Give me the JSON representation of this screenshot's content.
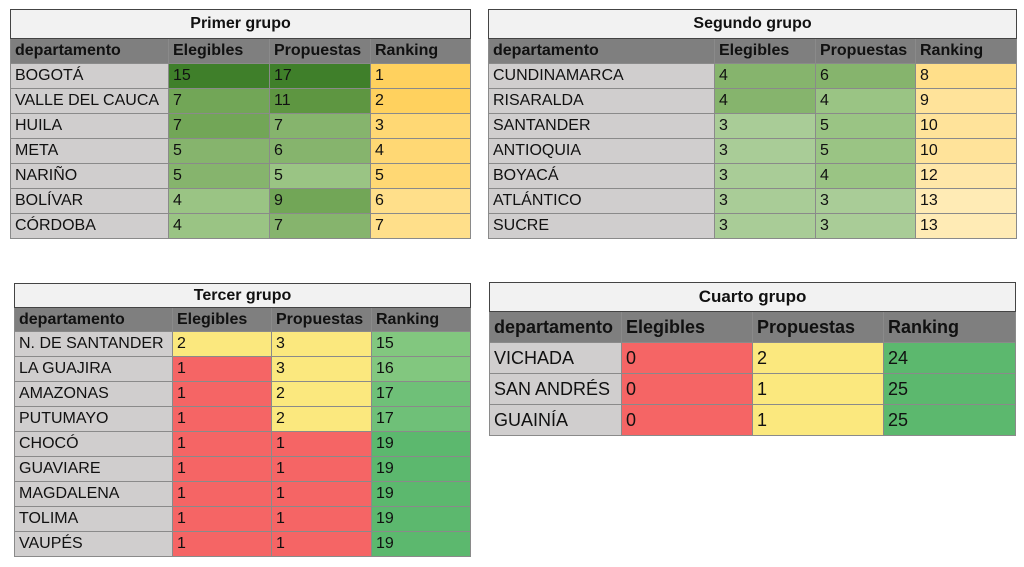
{
  "headers": {
    "dept": "departamento",
    "elegibles": "Elegibles",
    "propuestas": "Propuestas",
    "ranking": "Ranking"
  },
  "groups": [
    {
      "title": "Primer grupo",
      "rows": [
        {
          "dept": "BOGOTÁ",
          "elegibles": "15",
          "propuestas": "17",
          "ranking": "1"
        },
        {
          "dept": "VALLE DEL CAUCA",
          "elegibles": "7",
          "propuestas": "11",
          "ranking": "2"
        },
        {
          "dept": "HUILA",
          "elegibles": "7",
          "propuestas": "7",
          "ranking": "3"
        },
        {
          "dept": "META",
          "elegibles": "5",
          "propuestas": "6",
          "ranking": "4"
        },
        {
          "dept": "NARIÑO",
          "elegibles": "5",
          "propuestas": "5",
          "ranking": "5"
        },
        {
          "dept": "BOLÍVAR",
          "elegibles": "4",
          "propuestas": "9",
          "ranking": "6"
        },
        {
          "dept": "CÓRDOBA",
          "elegibles": "4",
          "propuestas": "7",
          "ranking": "7"
        }
      ]
    },
    {
      "title": "Segundo grupo",
      "rows": [
        {
          "dept": "CUNDINAMARCA",
          "elegibles": "4",
          "propuestas": "6",
          "ranking": "8"
        },
        {
          "dept": "RISARALDA",
          "elegibles": "4",
          "propuestas": "4",
          "ranking": "9"
        },
        {
          "dept": "SANTANDER",
          "elegibles": "3",
          "propuestas": "5",
          "ranking": "10"
        },
        {
          "dept": "ANTIOQUIA",
          "elegibles": "3",
          "propuestas": "5",
          "ranking": "10"
        },
        {
          "dept": "BOYACÁ",
          "elegibles": "3",
          "propuestas": "4",
          "ranking": "12"
        },
        {
          "dept": "ATLÁNTICO",
          "elegibles": "3",
          "propuestas": "3",
          "ranking": "13"
        },
        {
          "dept": "SUCRE",
          "elegibles": "3",
          "propuestas": "3",
          "ranking": "13"
        }
      ]
    },
    {
      "title": "Tercer grupo",
      "rows": [
        {
          "dept": "N. DE SANTANDER",
          "elegibles": "2",
          "propuestas": "3",
          "ranking": "15"
        },
        {
          "dept": "LA GUAJIRA",
          "elegibles": "1",
          "propuestas": "3",
          "ranking": "16"
        },
        {
          "dept": "AMAZONAS",
          "elegibles": "1",
          "propuestas": "2",
          "ranking": "17"
        },
        {
          "dept": "PUTUMAYO",
          "elegibles": "1",
          "propuestas": "2",
          "ranking": "17"
        },
        {
          "dept": "CHOCÓ",
          "elegibles": "1",
          "propuestas": "1",
          "ranking": "19"
        },
        {
          "dept": "GUAVIARE",
          "elegibles": "1",
          "propuestas": "1",
          "ranking": "19"
        },
        {
          "dept": "MAGDALENA",
          "elegibles": "1",
          "propuestas": "1",
          "ranking": "19"
        },
        {
          "dept": "TOLIMA",
          "elegibles": "1",
          "propuestas": "1",
          "ranking": "19"
        },
        {
          "dept": "VAUPÉS",
          "elegibles": "1",
          "propuestas": "1",
          "ranking": "19"
        }
      ]
    },
    {
      "title": "Cuarto grupo",
      "rows": [
        {
          "dept": "VICHADA",
          "elegibles": "0",
          "propuestas": "2",
          "ranking": "24"
        },
        {
          "dept": "SAN ANDRÉS",
          "elegibles": "0",
          "propuestas": "1",
          "ranking": "25"
        },
        {
          "dept": "GUAINÍA",
          "elegibles": "0",
          "propuestas": "1",
          "ranking": "25"
        }
      ]
    }
  ],
  "colors": {
    "dept_cell": "#d0cece",
    "header_row": "#7f7f7f",
    "title_row": "#f2f2f2",
    "red": "#f56565",
    "yellow": "#fbe87e",
    "green": "#5cb86e",
    "dark_green": "#3f7f2a",
    "gold": "#ffd15e"
  }
}
